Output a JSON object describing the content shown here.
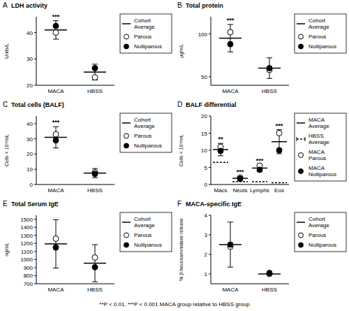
{
  "chart_data": [
    {
      "type": "dot",
      "panel": "A",
      "title": "LDH activity",
      "y_label": "Units/L",
      "categories": [
        "MACA",
        "HBSS"
      ],
      "ylim": [
        20,
        46
      ],
      "yticks": [
        20,
        30,
        40
      ],
      "legend": "right",
      "annotations": [
        "***",
        null
      ],
      "series": [
        {
          "name": "Cohort Average",
          "marker": "hline",
          "line_style": "solid",
          "color": "#000000",
          "values": [
            41,
            25
          ],
          "error": [
            3.5,
            3
          ]
        },
        {
          "name": "Parous",
          "marker": "circle",
          "color": "#ffffff",
          "values": [
            40,
            23
          ]
        },
        {
          "name": "Nulliparous",
          "marker": "circle",
          "color": "#000000",
          "values": [
            42.5,
            26.5
          ]
        }
      ]
    },
    {
      "type": "dot",
      "panel": "B",
      "title": "Total protein",
      "y_label": "μg/mL",
      "categories": [
        "MACA",
        "HBSS"
      ],
      "ylim": [
        40,
        120
      ],
      "yticks": [
        50,
        100
      ],
      "legend": "right",
      "annotations": [
        "***",
        null
      ],
      "series": [
        {
          "name": "Cohort Average",
          "marker": "hline",
          "line_style": "solid",
          "color": "#000000",
          "values": [
            95,
            60
          ],
          "error": [
            16,
            12
          ]
        },
        {
          "name": "Parous",
          "marker": "circle",
          "color": "#ffffff",
          "values": [
            102,
            58
          ]
        },
        {
          "name": "Nulliparous",
          "marker": "circle",
          "color": "#000000",
          "values": [
            88,
            60
          ]
        }
      ]
    },
    {
      "type": "dot",
      "panel": "C",
      "title": "Total cells (BALF)",
      "y_label": "Cells × 10⁴/mL",
      "categories": [
        "MACA",
        "HBSS"
      ],
      "ylim": [
        0,
        45
      ],
      "yticks": [
        0,
        10,
        20,
        30,
        40
      ],
      "legend": "right",
      "annotations": [
        "***",
        null
      ],
      "series": [
        {
          "name": "Cohort Average",
          "marker": "hline",
          "line_style": "solid",
          "color": "#000000",
          "values": [
            31,
            7.5
          ],
          "error": [
            7,
            3
          ]
        },
        {
          "name": "Parous",
          "marker": "circle",
          "color": "#ffffff",
          "values": [
            33,
            8
          ]
        },
        {
          "name": "Nulliparous",
          "marker": "circle",
          "color": "#000000",
          "values": [
            29,
            7
          ]
        }
      ]
    },
    {
      "type": "dot",
      "panel": "D",
      "title": "BALF differential",
      "y_label": "Cells × 10⁴/mL",
      "categories": [
        "Macs",
        "Neuts",
        "Lymphs",
        "Eos"
      ],
      "ylim": [
        0,
        20
      ],
      "yticks": [
        0,
        5,
        10,
        15,
        20
      ],
      "legend": "right",
      "annotations": [
        "**",
        "***",
        "***",
        "***"
      ],
      "series": [
        {
          "name": "MACA Average",
          "marker": "hline",
          "line_style": "solid",
          "color": "#000000",
          "values": [
            10.2,
            1.8,
            4.8,
            12.5
          ],
          "error": [
            1.8,
            0.6,
            1,
            3.5
          ]
        },
        {
          "name": "HBSS Average",
          "marker": "hline",
          "line_style": "dashed",
          "color": "#000000",
          "values": [
            6.5,
            0.8,
            0.8,
            0.5
          ]
        },
        {
          "name": "MACA Parous",
          "marker": "circle",
          "color": "#ffffff",
          "values": [
            11,
            2,
            5.5,
            15
          ]
        },
        {
          "name": "MACA Nulliparous",
          "marker": "circle",
          "color": "#000000",
          "values": [
            9.8,
            1.7,
            4.3,
            10
          ]
        }
      ]
    },
    {
      "type": "dot",
      "panel": "E",
      "title": "Total Serum IgE",
      "y_label": "ng/mL",
      "categories": [
        "MACA",
        "HBSS"
      ],
      "ylim": [
        700,
        1550
      ],
      "yticks": [
        700,
        800,
        900,
        1000,
        1100,
        1200,
        1300,
        1400,
        1500
      ],
      "legend": "right",
      "annotations": [
        null,
        null
      ],
      "series": [
        {
          "name": "Cohort Average",
          "marker": "hline",
          "line_style": "solid",
          "color": "#000000",
          "values": [
            1195,
            955
          ],
          "error": [
            300,
            230
          ]
        },
        {
          "name": "Parous",
          "marker": "circle",
          "color": "#ffffff",
          "values": [
            1260,
            1025
          ]
        },
        {
          "name": "Nulliparous",
          "marker": "circle",
          "color": "#000000",
          "values": [
            1150,
            905
          ]
        }
      ]
    },
    {
      "type": "dot",
      "panel": "F",
      "title": "MACA-specific IgE",
      "y_label": "% β-hexosaminidase release",
      "categories": [
        "MACA",
        "HBSS"
      ],
      "ylim": [
        0.5,
        4
      ],
      "yticks": [
        1,
        2,
        3,
        4
      ],
      "legend": "right",
      "annotations": [
        null,
        null
      ],
      "series": [
        {
          "name": "Cohort Average",
          "marker": "hline",
          "line_style": "solid",
          "color": "#000000",
          "values": [
            2.5,
            1.0
          ],
          "error": [
            1.15,
            0.05
          ]
        },
        {
          "name": "Parous",
          "marker": "circle",
          "color": "#ffffff",
          "values": [
            2.4,
            1.0
          ]
        },
        {
          "name": "Nulliparous",
          "marker": "circle",
          "color": "#000000",
          "values": [
            2.5,
            1.05
          ]
        }
      ]
    }
  ],
  "footnote": "**P < 0.01, ***P < 0.001 MACA group relative to HBSS group"
}
